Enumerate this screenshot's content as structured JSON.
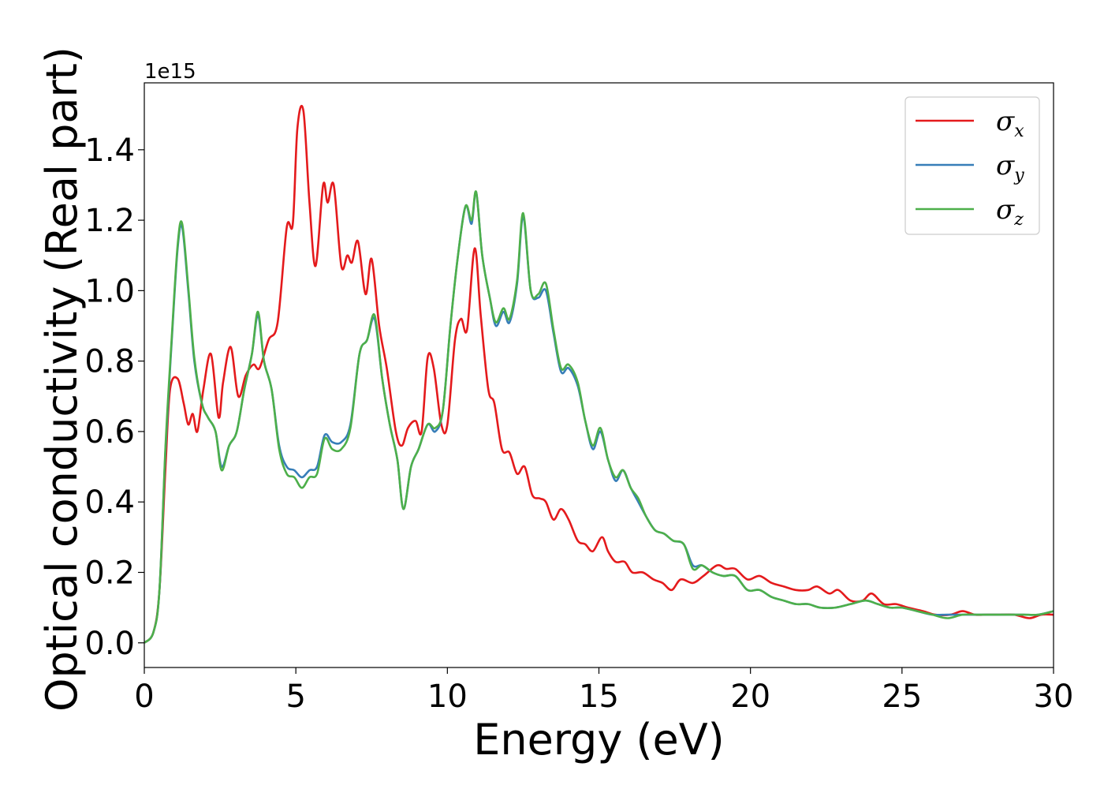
{
  "chart_data": {
    "type": "line",
    "xlabel": "Energy (eV)",
    "ylabel": "Optical conductivity (Real part)",
    "y_offset_text": "1e15",
    "xlim": [
      0,
      30
    ],
    "ylim": [
      -0.07,
      1.59
    ],
    "x_ticks": [
      0,
      5,
      10,
      15,
      20,
      25,
      30
    ],
    "x_tick_labels": [
      "0",
      "5",
      "10",
      "15",
      "20",
      "25",
      "30"
    ],
    "y_ticks": [
      0.0,
      0.2,
      0.4,
      0.6,
      0.8,
      1.0,
      1.2,
      1.4
    ],
    "y_tick_labels": [
      "0.0",
      "0.2",
      "0.4",
      "0.6",
      "0.8",
      "1.0",
      "1.2",
      "1.4"
    ],
    "grid": false,
    "legend_position": "top-right",
    "series": [
      {
        "name": "σx",
        "symbol": "σ",
        "subscript": "x",
        "color": "#e41a1c",
        "points": [
          [
            0,
            0
          ],
          [
            0.3,
            0.03
          ],
          [
            0.5,
            0.15
          ],
          [
            0.7,
            0.5
          ],
          [
            0.85,
            0.72
          ],
          [
            1.1,
            0.75
          ],
          [
            1.3,
            0.68
          ],
          [
            1.45,
            0.62
          ],
          [
            1.6,
            0.65
          ],
          [
            1.75,
            0.6
          ],
          [
            1.95,
            0.72
          ],
          [
            2.2,
            0.82
          ],
          [
            2.45,
            0.64
          ],
          [
            2.6,
            0.74
          ],
          [
            2.85,
            0.84
          ],
          [
            3.1,
            0.7
          ],
          [
            3.35,
            0.76
          ],
          [
            3.6,
            0.79
          ],
          [
            3.8,
            0.78
          ],
          [
            4.1,
            0.86
          ],
          [
            4.4,
            0.91
          ],
          [
            4.7,
            1.18
          ],
          [
            4.9,
            1.19
          ],
          [
            5.05,
            1.46
          ],
          [
            5.25,
            1.51
          ],
          [
            5.45,
            1.25
          ],
          [
            5.65,
            1.07
          ],
          [
            5.9,
            1.3
          ],
          [
            6.05,
            1.25
          ],
          [
            6.25,
            1.3
          ],
          [
            6.5,
            1.07
          ],
          [
            6.7,
            1.1
          ],
          [
            6.85,
            1.08
          ],
          [
            7.05,
            1.14
          ],
          [
            7.3,
            0.99
          ],
          [
            7.5,
            1.09
          ],
          [
            7.75,
            0.9
          ],
          [
            8.0,
            0.78
          ],
          [
            8.3,
            0.6
          ],
          [
            8.5,
            0.56
          ],
          [
            8.7,
            0.61
          ],
          [
            8.95,
            0.63
          ],
          [
            9.15,
            0.6
          ],
          [
            9.35,
            0.81
          ],
          [
            9.55,
            0.78
          ],
          [
            9.8,
            0.62
          ],
          [
            10.0,
            0.62
          ],
          [
            10.25,
            0.86
          ],
          [
            10.45,
            0.92
          ],
          [
            10.65,
            0.89
          ],
          [
            10.9,
            1.12
          ],
          [
            11.1,
            0.93
          ],
          [
            11.35,
            0.72
          ],
          [
            11.55,
            0.68
          ],
          [
            11.8,
            0.55
          ],
          [
            12.05,
            0.54
          ],
          [
            12.3,
            0.48
          ],
          [
            12.55,
            0.5
          ],
          [
            12.8,
            0.42
          ],
          [
            13.05,
            0.41
          ],
          [
            13.25,
            0.4
          ],
          [
            13.5,
            0.35
          ],
          [
            13.75,
            0.38
          ],
          [
            14.0,
            0.35
          ],
          [
            14.3,
            0.29
          ],
          [
            14.55,
            0.28
          ],
          [
            14.8,
            0.26
          ],
          [
            15.1,
            0.3
          ],
          [
            15.3,
            0.26
          ],
          [
            15.55,
            0.23
          ],
          [
            15.85,
            0.23
          ],
          [
            16.1,
            0.2
          ],
          [
            16.45,
            0.2
          ],
          [
            16.8,
            0.18
          ],
          [
            17.1,
            0.17
          ],
          [
            17.4,
            0.15
          ],
          [
            17.7,
            0.18
          ],
          [
            18.1,
            0.17
          ],
          [
            18.45,
            0.19
          ],
          [
            18.9,
            0.22
          ],
          [
            19.2,
            0.21
          ],
          [
            19.5,
            0.21
          ],
          [
            19.9,
            0.18
          ],
          [
            20.3,
            0.19
          ],
          [
            20.7,
            0.17
          ],
          [
            21.1,
            0.16
          ],
          [
            21.5,
            0.15
          ],
          [
            21.9,
            0.15
          ],
          [
            22.2,
            0.16
          ],
          [
            22.6,
            0.14
          ],
          [
            22.9,
            0.15
          ],
          [
            23.3,
            0.12
          ],
          [
            23.7,
            0.12
          ],
          [
            24.0,
            0.14
          ],
          [
            24.4,
            0.11
          ],
          [
            24.8,
            0.11
          ],
          [
            25.2,
            0.1
          ],
          [
            25.7,
            0.09
          ],
          [
            26.1,
            0.08
          ],
          [
            26.6,
            0.08
          ],
          [
            27.0,
            0.09
          ],
          [
            27.4,
            0.08
          ],
          [
            27.8,
            0.08
          ],
          [
            28.2,
            0.08
          ],
          [
            28.7,
            0.08
          ],
          [
            29.2,
            0.07
          ],
          [
            29.6,
            0.08
          ],
          [
            30.0,
            0.08
          ]
        ]
      },
      {
        "name": "σy",
        "symbol": "σ",
        "subscript": "y",
        "color": "#377eb8",
        "points": [
          [
            0,
            0
          ],
          [
            0.3,
            0.03
          ],
          [
            0.5,
            0.15
          ],
          [
            0.7,
            0.55
          ],
          [
            0.9,
            0.85
          ],
          [
            1.1,
            1.12
          ],
          [
            1.25,
            1.18
          ],
          [
            1.45,
            1.0
          ],
          [
            1.65,
            0.8
          ],
          [
            1.9,
            0.68
          ],
          [
            2.1,
            0.64
          ],
          [
            2.35,
            0.6
          ],
          [
            2.55,
            0.5
          ],
          [
            2.8,
            0.56
          ],
          [
            3.05,
            0.6
          ],
          [
            3.3,
            0.72
          ],
          [
            3.55,
            0.82
          ],
          [
            3.75,
            0.93
          ],
          [
            3.95,
            0.8
          ],
          [
            4.2,
            0.72
          ],
          [
            4.45,
            0.56
          ],
          [
            4.7,
            0.5
          ],
          [
            4.95,
            0.49
          ],
          [
            5.2,
            0.47
          ],
          [
            5.45,
            0.49
          ],
          [
            5.7,
            0.5
          ],
          [
            5.95,
            0.59
          ],
          [
            6.2,
            0.57
          ],
          [
            6.5,
            0.57
          ],
          [
            6.8,
            0.62
          ],
          [
            7.1,
            0.82
          ],
          [
            7.35,
            0.86
          ],
          [
            7.6,
            0.92
          ],
          [
            7.85,
            0.75
          ],
          [
            8.1,
            0.62
          ],
          [
            8.35,
            0.52
          ],
          [
            8.55,
            0.38
          ],
          [
            8.8,
            0.5
          ],
          [
            9.05,
            0.55
          ],
          [
            9.35,
            0.62
          ],
          [
            9.6,
            0.6
          ],
          [
            9.85,
            0.66
          ],
          [
            10.1,
            0.9
          ],
          [
            10.35,
            1.1
          ],
          [
            10.6,
            1.24
          ],
          [
            10.8,
            1.19
          ],
          [
            10.95,
            1.28
          ],
          [
            11.15,
            1.1
          ],
          [
            11.4,
            0.98
          ],
          [
            11.6,
            0.9
          ],
          [
            11.85,
            0.94
          ],
          [
            12.05,
            0.91
          ],
          [
            12.3,
            1.02
          ],
          [
            12.5,
            1.21
          ],
          [
            12.75,
            1.0
          ],
          [
            13.0,
            0.98
          ],
          [
            13.25,
            1.0
          ],
          [
            13.5,
            0.88
          ],
          [
            13.75,
            0.77
          ],
          [
            14.0,
            0.78
          ],
          [
            14.3,
            0.73
          ],
          [
            14.55,
            0.63
          ],
          [
            14.8,
            0.55
          ],
          [
            15.05,
            0.6
          ],
          [
            15.3,
            0.52
          ],
          [
            15.55,
            0.46
          ],
          [
            15.8,
            0.49
          ],
          [
            16.05,
            0.44
          ],
          [
            16.3,
            0.4
          ],
          [
            16.55,
            0.36
          ],
          [
            16.85,
            0.32
          ],
          [
            17.15,
            0.31
          ],
          [
            17.45,
            0.29
          ],
          [
            17.8,
            0.28
          ],
          [
            18.1,
            0.22
          ],
          [
            18.4,
            0.22
          ],
          [
            18.75,
            0.2
          ],
          [
            19.1,
            0.19
          ],
          [
            19.5,
            0.19
          ],
          [
            19.9,
            0.15
          ],
          [
            20.3,
            0.15
          ],
          [
            20.7,
            0.13
          ],
          [
            21.1,
            0.12
          ],
          [
            21.5,
            0.11
          ],
          [
            21.9,
            0.11
          ],
          [
            22.3,
            0.1
          ],
          [
            22.8,
            0.1
          ],
          [
            23.3,
            0.11
          ],
          [
            23.8,
            0.12
          ],
          [
            24.2,
            0.11
          ],
          [
            24.6,
            0.1
          ],
          [
            25.0,
            0.1
          ],
          [
            25.5,
            0.09
          ],
          [
            26.0,
            0.08
          ],
          [
            26.5,
            0.08
          ],
          [
            27.0,
            0.08
          ],
          [
            27.5,
            0.08
          ],
          [
            28.0,
            0.08
          ],
          [
            28.5,
            0.08
          ],
          [
            29.0,
            0.08
          ],
          [
            29.5,
            0.08
          ],
          [
            30.0,
            0.09
          ]
        ]
      },
      {
        "name": "σz",
        "symbol": "σ",
        "subscript": "z",
        "color": "#4daf4a",
        "points": [
          [
            0,
            0
          ],
          [
            0.3,
            0.03
          ],
          [
            0.5,
            0.15
          ],
          [
            0.7,
            0.56
          ],
          [
            0.9,
            0.86
          ],
          [
            1.1,
            1.13
          ],
          [
            1.25,
            1.19
          ],
          [
            1.45,
            1.01
          ],
          [
            1.65,
            0.81
          ],
          [
            1.9,
            0.68
          ],
          [
            2.1,
            0.64
          ],
          [
            2.35,
            0.6
          ],
          [
            2.55,
            0.49
          ],
          [
            2.8,
            0.56
          ],
          [
            3.05,
            0.6
          ],
          [
            3.3,
            0.72
          ],
          [
            3.55,
            0.82
          ],
          [
            3.75,
            0.94
          ],
          [
            3.95,
            0.8
          ],
          [
            4.2,
            0.72
          ],
          [
            4.45,
            0.55
          ],
          [
            4.7,
            0.48
          ],
          [
            4.95,
            0.47
          ],
          [
            5.2,
            0.44
          ],
          [
            5.45,
            0.47
          ],
          [
            5.7,
            0.48
          ],
          [
            5.95,
            0.58
          ],
          [
            6.2,
            0.55
          ],
          [
            6.5,
            0.55
          ],
          [
            6.8,
            0.61
          ],
          [
            7.1,
            0.82
          ],
          [
            7.35,
            0.86
          ],
          [
            7.6,
            0.93
          ],
          [
            7.85,
            0.75
          ],
          [
            8.1,
            0.62
          ],
          [
            8.35,
            0.52
          ],
          [
            8.55,
            0.38
          ],
          [
            8.8,
            0.5
          ],
          [
            9.05,
            0.55
          ],
          [
            9.35,
            0.62
          ],
          [
            9.6,
            0.61
          ],
          [
            9.85,
            0.66
          ],
          [
            10.1,
            0.9
          ],
          [
            10.35,
            1.1
          ],
          [
            10.6,
            1.24
          ],
          [
            10.8,
            1.2
          ],
          [
            10.95,
            1.28
          ],
          [
            11.15,
            1.1
          ],
          [
            11.4,
            0.98
          ],
          [
            11.6,
            0.91
          ],
          [
            11.85,
            0.95
          ],
          [
            12.05,
            0.92
          ],
          [
            12.3,
            1.03
          ],
          [
            12.5,
            1.22
          ],
          [
            12.75,
            1.0
          ],
          [
            13.0,
            0.99
          ],
          [
            13.25,
            1.02
          ],
          [
            13.5,
            0.89
          ],
          [
            13.75,
            0.78
          ],
          [
            14.0,
            0.79
          ],
          [
            14.3,
            0.74
          ],
          [
            14.55,
            0.63
          ],
          [
            14.8,
            0.56
          ],
          [
            15.05,
            0.61
          ],
          [
            15.3,
            0.52
          ],
          [
            15.55,
            0.47
          ],
          [
            15.8,
            0.49
          ],
          [
            16.05,
            0.44
          ],
          [
            16.3,
            0.41
          ],
          [
            16.55,
            0.36
          ],
          [
            16.85,
            0.32
          ],
          [
            17.15,
            0.31
          ],
          [
            17.45,
            0.29
          ],
          [
            17.8,
            0.28
          ],
          [
            18.1,
            0.21
          ],
          [
            18.4,
            0.22
          ],
          [
            18.75,
            0.2
          ],
          [
            19.1,
            0.19
          ],
          [
            19.5,
            0.19
          ],
          [
            19.9,
            0.15
          ],
          [
            20.3,
            0.15
          ],
          [
            20.7,
            0.13
          ],
          [
            21.1,
            0.12
          ],
          [
            21.5,
            0.11
          ],
          [
            21.9,
            0.11
          ],
          [
            22.3,
            0.1
          ],
          [
            22.8,
            0.1
          ],
          [
            23.3,
            0.11
          ],
          [
            23.8,
            0.12
          ],
          [
            24.2,
            0.11
          ],
          [
            24.6,
            0.1
          ],
          [
            25.0,
            0.1
          ],
          [
            25.5,
            0.09
          ],
          [
            26.0,
            0.08
          ],
          [
            26.5,
            0.07
          ],
          [
            27.0,
            0.08
          ],
          [
            27.5,
            0.08
          ],
          [
            28.0,
            0.08
          ],
          [
            28.5,
            0.08
          ],
          [
            29.0,
            0.08
          ],
          [
            29.5,
            0.08
          ],
          [
            30.0,
            0.09
          ]
        ]
      }
    ]
  }
}
